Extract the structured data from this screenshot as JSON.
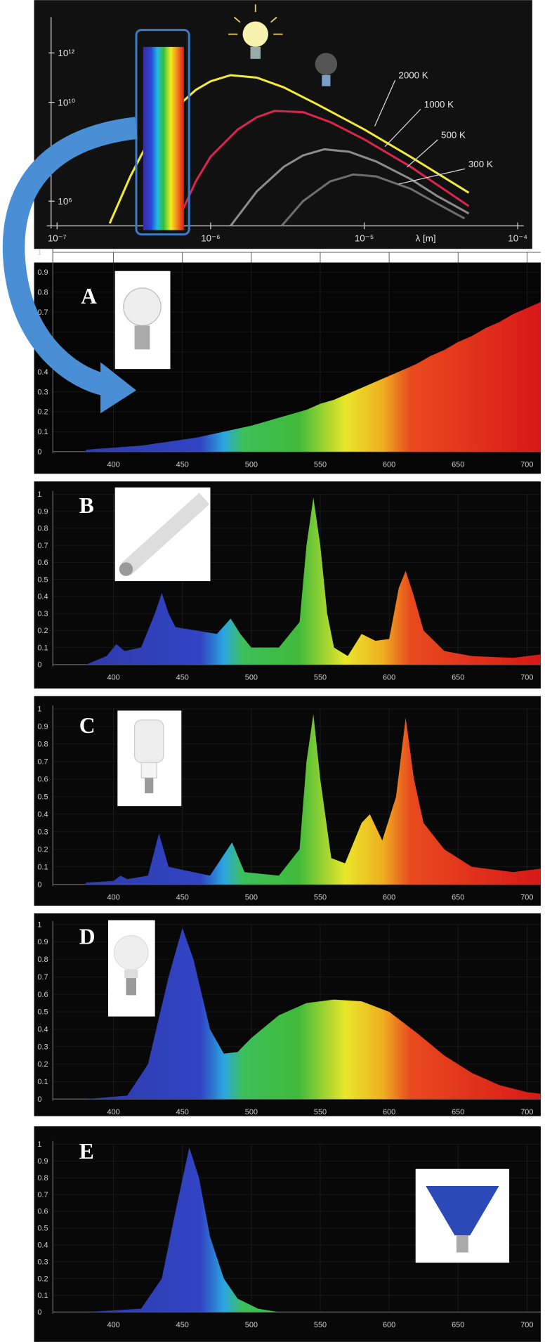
{
  "chart_data": [
    {
      "type": "line",
      "log_x": true,
      "log_y": true,
      "x_label": "λ [m]",
      "xlim": [
        1e-07,
        0.0001
      ],
      "ylim": [
        100000.0,
        100000000000000.0
      ],
      "xticks": [
        {
          "value": 1e-07,
          "label": "10⁻⁷"
        },
        {
          "value": 1e-06,
          "label": "10⁻⁶"
        },
        {
          "value": 1e-05,
          "label": "10⁻⁵"
        },
        {
          "value": 0.0001,
          "label": "10⁻⁴"
        }
      ],
      "yticks": [
        {
          "value": 1000000.0,
          "label": "10⁶"
        },
        {
          "value": 100000000.0,
          "label": null
        },
        {
          "value": 10000000000.0,
          "label": "10¹⁰"
        },
        {
          "value": 1000000000000.0,
          "label": "10¹²"
        }
      ],
      "series": [
        {
          "name": "2000 K",
          "color": "#f2ea3a",
          "x": [
            2.2e-07,
            3e-07,
            4e-07,
            6e-07,
            8e-07,
            1e-06,
            1.35e-06,
            2e-06,
            3e-06,
            5e-06,
            1e-05,
            2e-05,
            4.8e-05
          ],
          "values": [
            126000.0,
            10000000.0,
            320000000.0,
            6300000000.0,
            32000000000.0,
            71000000000.0,
            126000000000.0,
            100000000000.0,
            40000000000.0,
            8000000000.0,
            800000000.0,
            63000000.0,
            2200000.0
          ]
        },
        {
          "name": "1000 K",
          "color": "#d8264f",
          "x": [
            5.9e-07,
            8e-07,
            1e-06,
            1.5e-06,
            2e-06,
            2.6e-06,
            4e-06,
            6e-06,
            1e-05,
            2e-05,
            4.8e-05
          ],
          "values": [
            100000.0,
            6300000.0,
            63000000.0,
            790000000.0,
            2500000000.0,
            4500000000.0,
            4000000000.0,
            1600000000.0,
            320000000.0,
            25000000.0,
            630000.0
          ]
        },
        {
          "name": "500 K",
          "color": "#8c8c8c",
          "x": [
            1.35e-06,
            2e-06,
            3e-06,
            4e-06,
            5.5e-06,
            8e-06,
            1.2e-05,
            2e-05,
            3e-05,
            4.8e-05
          ],
          "values": [
            100000.0,
            2500000.0,
            25000000.0,
            71000000.0,
            126000000.0,
            100000000.0,
            40000000.0,
            7900000.0,
            1600000.0,
            320000.0
          ]
        },
        {
          "name": "300 K",
          "color": "#6e6e6e",
          "x": [
            2.9e-06,
            4e-06,
            6e-06,
            8.5e-06,
            1.2e-05,
            2e-05,
            3e-05,
            4.5e-05
          ],
          "values": [
            100000.0,
            1000000.0,
            6300000.0,
            12000000.0,
            10000000.0,
            3200000.0,
            790000.0,
            200000.0
          ]
        }
      ]
    },
    {
      "type": "area",
      "label": "A",
      "xlim": [
        372,
        710
      ],
      "ylim": [
        0,
        1
      ],
      "xticks": [
        400,
        450,
        500,
        550,
        600,
        650,
        700
      ],
      "yticks": [
        0,
        0.1,
        0.2,
        0.3,
        0.4,
        0.5,
        0.6,
        0.7,
        0.8,
        0.9,
        1
      ],
      "x": [
        380,
        390,
        400,
        410,
        420,
        430,
        440,
        450,
        460,
        470,
        480,
        490,
        500,
        510,
        520,
        530,
        540,
        550,
        560,
        570,
        580,
        590,
        600,
        610,
        620,
        630,
        640,
        650,
        660,
        670,
        680,
        690,
        700,
        710
      ],
      "values": [
        0.01,
        0.015,
        0.02,
        0.025,
        0.03,
        0.04,
        0.05,
        0.06,
        0.07,
        0.085,
        0.1,
        0.115,
        0.13,
        0.15,
        0.17,
        0.19,
        0.21,
        0.24,
        0.26,
        0.29,
        0.32,
        0.35,
        0.38,
        0.41,
        0.44,
        0.48,
        0.51,
        0.55,
        0.58,
        0.62,
        0.65,
        0.69,
        0.72,
        0.75
      ]
    },
    {
      "type": "area",
      "label": "B",
      "xlim": [
        372,
        710
      ],
      "ylim": [
        0,
        1
      ],
      "xticks": [
        400,
        450,
        500,
        550,
        600,
        650,
        700
      ],
      "yticks": [
        0,
        0.1,
        0.2,
        0.3,
        0.4,
        0.5,
        0.6,
        0.7,
        0.8,
        0.9,
        1
      ],
      "x": [
        380,
        395,
        402,
        408,
        420,
        430,
        435,
        440,
        445,
        460,
        475,
        485,
        492,
        500,
        520,
        535,
        540,
        545,
        550,
        555,
        560,
        570,
        580,
        590,
        600,
        607,
        612,
        618,
        625,
        640,
        660,
        690,
        710
      ],
      "values": [
        0,
        0.05,
        0.12,
        0.08,
        0.1,
        0.3,
        0.42,
        0.3,
        0.22,
        0.2,
        0.18,
        0.27,
        0.18,
        0.1,
        0.1,
        0.25,
        0.7,
        0.98,
        0.7,
        0.3,
        0.1,
        0.05,
        0.18,
        0.14,
        0.15,
        0.45,
        0.55,
        0.4,
        0.2,
        0.08,
        0.05,
        0.04,
        0.06
      ]
    },
    {
      "type": "area",
      "label": "C",
      "xlim": [
        372,
        710
      ],
      "ylim": [
        0,
        1
      ],
      "xticks": [
        400,
        450,
        500,
        550,
        600,
        650,
        700
      ],
      "yticks": [
        0,
        0.1,
        0.2,
        0.3,
        0.4,
        0.5,
        0.6,
        0.7,
        0.8,
        0.9,
        1
      ],
      "x": [
        380,
        400,
        405,
        410,
        425,
        433,
        440,
        470,
        486,
        495,
        520,
        535,
        540,
        545,
        550,
        558,
        568,
        580,
        586,
        595,
        605,
        612,
        618,
        625,
        640,
        660,
        690,
        710
      ],
      "values": [
        0.01,
        0.02,
        0.05,
        0.03,
        0.05,
        0.29,
        0.1,
        0.05,
        0.24,
        0.07,
        0.05,
        0.2,
        0.7,
        0.97,
        0.6,
        0.15,
        0.12,
        0.35,
        0.4,
        0.25,
        0.5,
        0.95,
        0.6,
        0.35,
        0.2,
        0.1,
        0.07,
        0.09
      ]
    },
    {
      "type": "area",
      "label": "D",
      "xlim": [
        372,
        710
      ],
      "ylim": [
        0,
        1
      ],
      "xticks": [
        400,
        450,
        500,
        550,
        600,
        650,
        700
      ],
      "yticks": [
        0,
        0.1,
        0.2,
        0.3,
        0.4,
        0.5,
        0.6,
        0.7,
        0.8,
        0.9,
        1
      ],
      "x": [
        380,
        410,
        425,
        440,
        450,
        458,
        470,
        480,
        490,
        500,
        520,
        540,
        560,
        580,
        600,
        620,
        640,
        660,
        680,
        700,
        710
      ],
      "values": [
        0,
        0.02,
        0.2,
        0.7,
        0.98,
        0.8,
        0.4,
        0.26,
        0.27,
        0.35,
        0.48,
        0.55,
        0.57,
        0.56,
        0.5,
        0.38,
        0.25,
        0.15,
        0.08,
        0.04,
        0.03
      ]
    },
    {
      "type": "area",
      "label": "E",
      "xlim": [
        372,
        710
      ],
      "ylim": [
        0,
        1
      ],
      "xticks": [
        400,
        450,
        500,
        550,
        600,
        650,
        700
      ],
      "yticks": [
        0,
        0.1,
        0.2,
        0.3,
        0.4,
        0.5,
        0.6,
        0.7,
        0.8,
        0.9,
        1
      ],
      "x": [
        380,
        420,
        435,
        445,
        455,
        462,
        470,
        480,
        490,
        505,
        520,
        710
      ],
      "values": [
        0,
        0.02,
        0.2,
        0.6,
        0.98,
        0.8,
        0.45,
        0.2,
        0.08,
        0.02,
        0,
        0
      ]
    }
  ]
}
